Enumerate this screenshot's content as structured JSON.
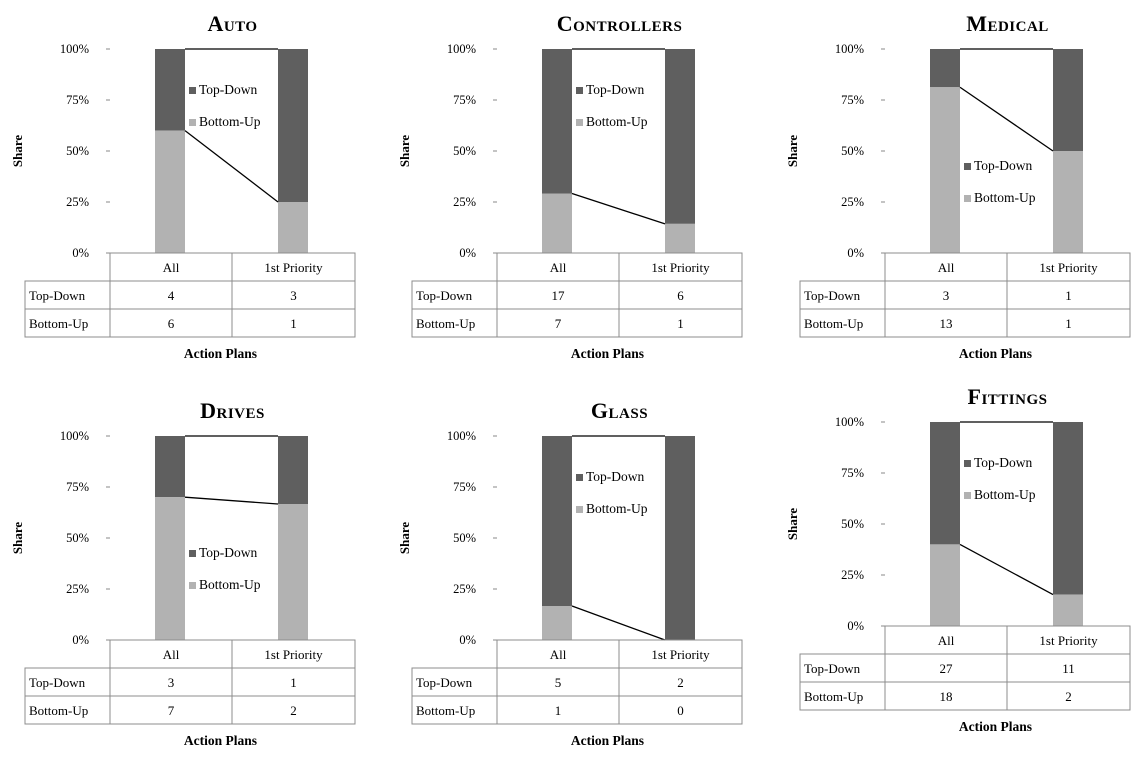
{
  "colors": {
    "top_down": "#5f5f5f",
    "bottom_up": "#b2b2b2",
    "connector": "#000000",
    "table_border": "#8c8c8c"
  },
  "chart_data": [
    {
      "type": "bar",
      "stacked": true,
      "percent": true,
      "title": "Auto",
      "ylabel": "Share",
      "xlabel": "Action Plans",
      "ylim": [
        0,
        100
      ],
      "yticks": [
        "0%",
        "25%",
        "50%",
        "75%",
        "100%"
      ],
      "categories": [
        "All",
        "1st Priority"
      ],
      "series": [
        {
          "name": "Top-Down",
          "values": [
            4,
            3
          ]
        },
        {
          "name": "Bottom-Up",
          "values": [
            6,
            1
          ]
        }
      ],
      "legend_position": "upper"
    },
    {
      "type": "bar",
      "stacked": true,
      "percent": true,
      "title": "Controllers",
      "ylabel": "Share",
      "xlabel": "Action Plans",
      "ylim": [
        0,
        100
      ],
      "yticks": [
        "0%",
        "25%",
        "50%",
        "75%",
        "100%"
      ],
      "categories": [
        "All",
        "1st Priority"
      ],
      "series": [
        {
          "name": "Top-Down",
          "values": [
            17,
            6
          ]
        },
        {
          "name": "Bottom-Up",
          "values": [
            7,
            1
          ]
        }
      ],
      "legend_position": "upper"
    },
    {
      "type": "bar",
      "stacked": true,
      "percent": true,
      "title": "Medical",
      "ylabel": "Share",
      "xlabel": "Action Plans",
      "ylim": [
        0,
        100
      ],
      "yticks": [
        "0%",
        "25%",
        "50%",
        "75%",
        "100%"
      ],
      "categories": [
        "All",
        "1st Priority"
      ],
      "series": [
        {
          "name": "Top-Down",
          "values": [
            3,
            1
          ]
        },
        {
          "name": "Bottom-Up",
          "values": [
            13,
            1
          ]
        }
      ],
      "legend_position": "lower"
    },
    {
      "type": "bar",
      "stacked": true,
      "percent": true,
      "title": "Drives",
      "ylabel": "Share",
      "xlabel": "Action Plans",
      "ylim": [
        0,
        100
      ],
      "yticks": [
        "0%",
        "25%",
        "50%",
        "75%",
        "100%"
      ],
      "categories": [
        "All",
        "1st Priority"
      ],
      "series": [
        {
          "name": "Top-Down",
          "values": [
            3,
            1
          ]
        },
        {
          "name": "Bottom-Up",
          "values": [
            7,
            2
          ]
        }
      ],
      "legend_position": "lower"
    },
    {
      "type": "bar",
      "stacked": true,
      "percent": true,
      "title": "Glass",
      "ylabel": "Share",
      "xlabel": "Action Plans",
      "ylim": [
        0,
        100
      ],
      "yticks": [
        "0%",
        "25%",
        "50%",
        "75%",
        "100%"
      ],
      "categories": [
        "All",
        "1st Priority"
      ],
      "series": [
        {
          "name": "Top-Down",
          "values": [
            5,
            2
          ]
        },
        {
          "name": "Bottom-Up",
          "values": [
            1,
            0
          ]
        }
      ],
      "legend_position": "upper"
    },
    {
      "type": "bar",
      "stacked": true,
      "percent": true,
      "title": "Fittings",
      "ylabel": "Share",
      "xlabel": "Action Plans",
      "ylim": [
        0,
        100
      ],
      "yticks": [
        "0%",
        "25%",
        "50%",
        "75%",
        "100%"
      ],
      "categories": [
        "All",
        "1st Priority"
      ],
      "series": [
        {
          "name": "Top-Down",
          "values": [
            27,
            11
          ]
        },
        {
          "name": "Bottom-Up",
          "values": [
            18,
            2
          ]
        }
      ],
      "legend_position": "upper"
    }
  ]
}
